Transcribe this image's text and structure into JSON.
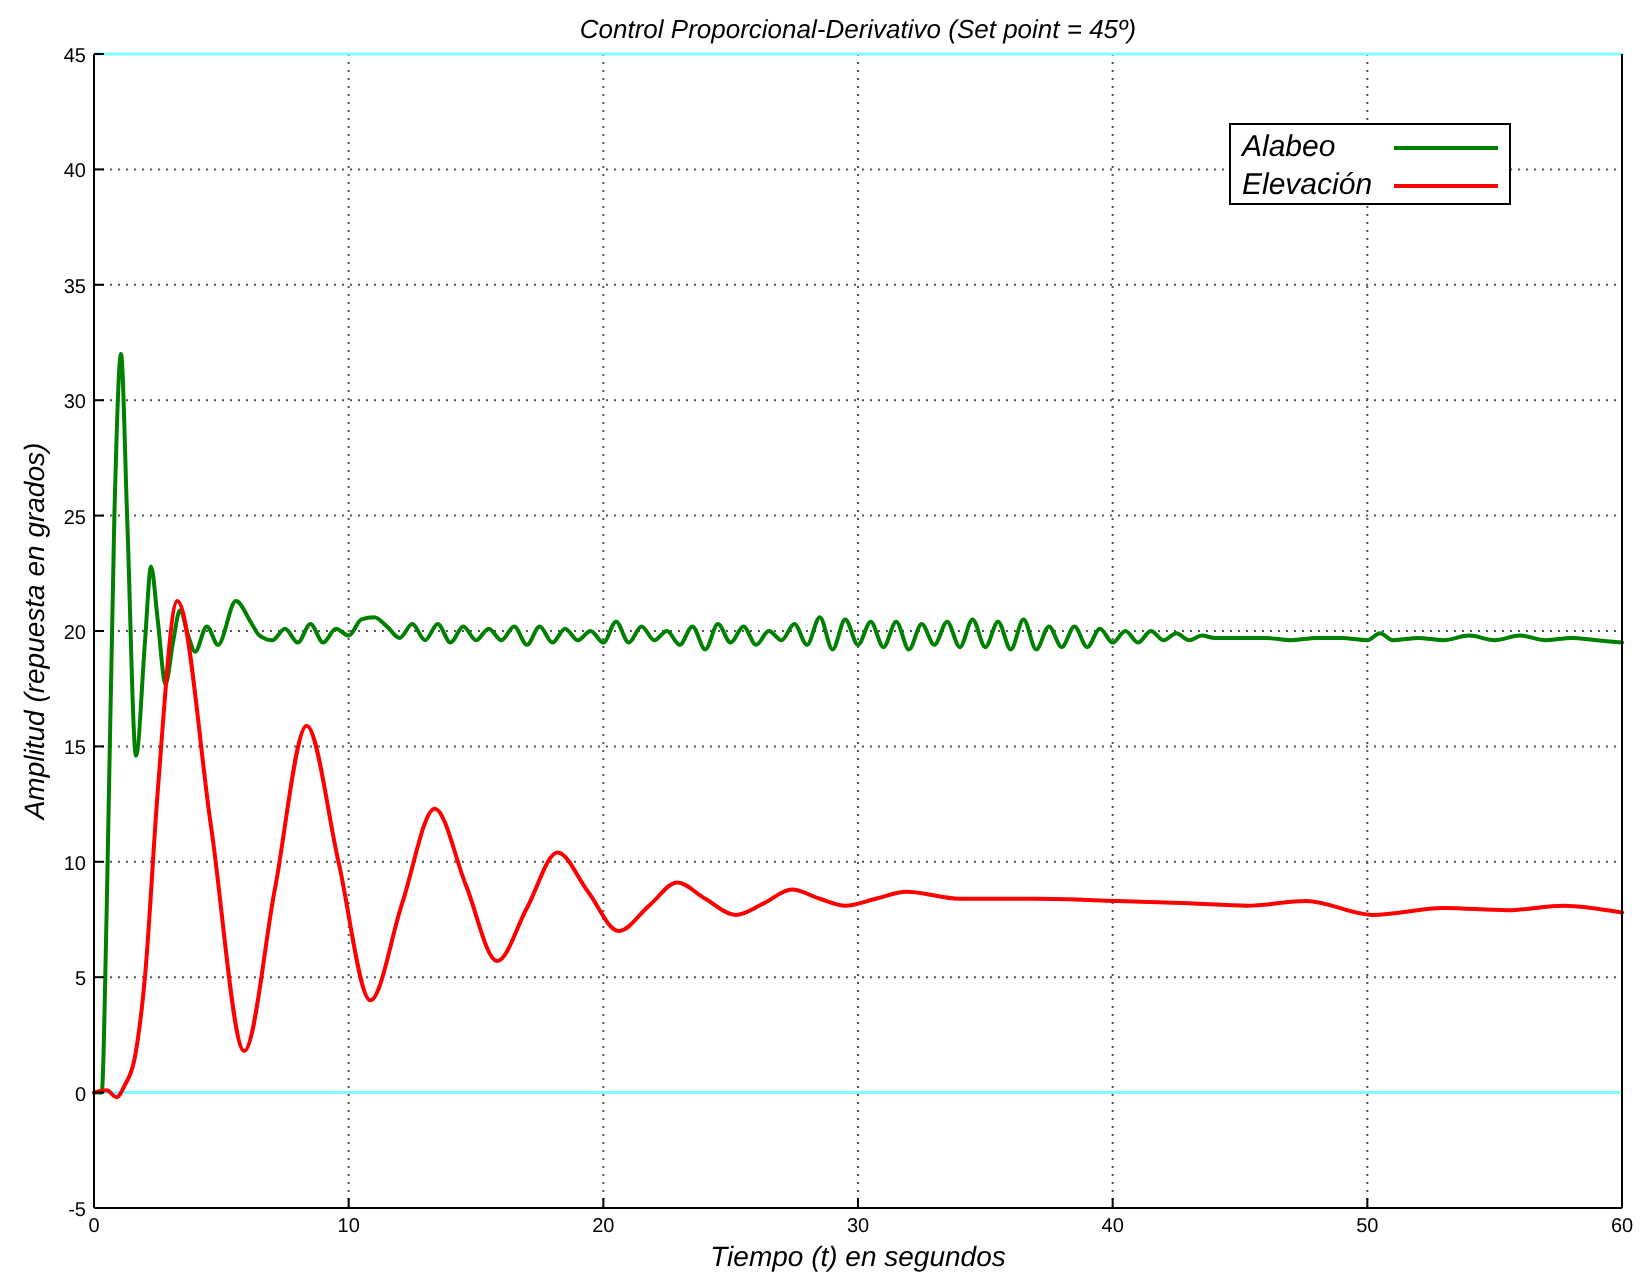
{
  "chart_data": {
    "type": "line",
    "title": "Control Proporcional-Derivativo (Set point = 45º)",
    "xlabel": "Tiempo (t) en segundos",
    "ylabel": "Amplitud (repuesta en grados)",
    "xlim": [
      0,
      60
    ],
    "xticks": [
      0,
      10,
      20,
      30,
      40,
      50,
      60
    ],
    "ylim": [
      -5,
      45
    ],
    "yticks": [
      -5,
      0,
      5,
      10,
      15,
      20,
      25,
      30,
      35,
      40,
      45
    ],
    "grid": true,
    "legend": "top right",
    "marker": "none",
    "line_style": "solid",
    "ref_lines": [
      {
        "axis": "y",
        "value": 45,
        "color": "#80ffff"
      },
      {
        "axis": "y",
        "value": 0,
        "color": "#80ffff"
      }
    ],
    "series": [
      {
        "name": "Alabeo",
        "color": "#008000",
        "x": [
          0,
          0.3,
          0.5,
          0.8,
          1.06,
          1.3,
          1.65,
          2.0,
          2.24,
          2.5,
          2.81,
          3.1,
          3.38,
          3.7,
          3.97,
          4.43,
          4.87,
          5.57,
          6.2,
          6.5,
          7,
          7.5,
          8,
          8.5,
          9,
          9.5,
          10,
          10.5,
          11,
          11.5,
          12,
          12.5,
          13,
          13.5,
          14,
          14.5,
          15,
          15.5,
          16,
          16.5,
          17,
          17.5,
          18,
          18.5,
          19,
          19.5,
          20,
          20.5,
          21,
          21.5,
          22,
          22.5,
          23,
          23.5,
          24,
          24.5,
          25,
          25.5,
          26,
          26.5,
          27,
          27.5,
          28,
          28.5,
          29,
          29.5,
          30,
          30.5,
          31,
          31.5,
          32,
          32.5,
          33,
          33.5,
          34,
          34.5,
          35,
          35.5,
          36,
          36.5,
          37,
          37.5,
          38,
          38.5,
          39,
          39.5,
          40,
          40.5,
          41,
          41.5,
          42,
          42.5,
          43,
          43.5,
          44,
          45,
          46,
          47,
          48,
          49,
          50,
          50.5,
          51,
          52,
          53,
          54,
          55,
          56,
          57,
          58,
          59,
          60
        ],
        "values": [
          0,
          0,
          8,
          25,
          32,
          25,
          14.6,
          19.5,
          22.8,
          20.5,
          17.7,
          19.5,
          20.9,
          19.8,
          19.1,
          20.2,
          19.4,
          21.3,
          20.3,
          19.8,
          19.6,
          20.1,
          19.5,
          20.3,
          19.5,
          20.1,
          19.8,
          20.5,
          20.6,
          20.2,
          19.7,
          20.3,
          19.6,
          20.3,
          19.5,
          20.2,
          19.6,
          20.1,
          19.6,
          20.2,
          19.4,
          20.2,
          19.5,
          20.1,
          19.6,
          20.0,
          19.5,
          20.4,
          19.5,
          20.2,
          19.6,
          20.0,
          19.4,
          20.2,
          19.2,
          20.3,
          19.5,
          20.2,
          19.4,
          20.0,
          19.6,
          20.3,
          19.4,
          20.6,
          19.2,
          20.5,
          19.4,
          20.4,
          19.3,
          20.4,
          19.2,
          20.3,
          19.4,
          20.4,
          19.3,
          20.5,
          19.3,
          20.4,
          19.2,
          20.5,
          19.2,
          20.2,
          19.3,
          20.2,
          19.3,
          20.1,
          19.5,
          20.0,
          19.5,
          20.0,
          19.6,
          19.9,
          19.6,
          19.8,
          19.7,
          19.7,
          19.7,
          19.6,
          19.7,
          19.7,
          19.6,
          19.9,
          19.6,
          19.7,
          19.6,
          19.8,
          19.6,
          19.8,
          19.6,
          19.7,
          19.6,
          19.5
        ]
      },
      {
        "name": "Elevación",
        "color": "#ff0000",
        "x": [
          0,
          0.5,
          0.88,
          1.2,
          1.6,
          2.0,
          2.5,
          3.27,
          4.6,
          5.9,
          7.1,
          8.35,
          9.6,
          10.85,
          12.1,
          13.38,
          14.6,
          15.83,
          17.0,
          18.2,
          19.4,
          20.6,
          21.8,
          22.9,
          24.0,
          25.2,
          26.3,
          27.4,
          28.5,
          29.5,
          30.7,
          31.9,
          34.0,
          37.0,
          40.2,
          43.0,
          45.3,
          47.6,
          50.2,
          53.0,
          55.5,
          57.7,
          60
        ],
        "values": [
          0,
          0.1,
          -0.2,
          0.3,
          1.5,
          5,
          13,
          21.3,
          11.5,
          1.8,
          8.8,
          15.9,
          10,
          4.0,
          8.2,
          12.3,
          9,
          5.7,
          8,
          10.4,
          8.7,
          7.0,
          8.1,
          9.1,
          8.4,
          7.7,
          8.2,
          8.8,
          8.4,
          8.1,
          8.4,
          8.7,
          8.4,
          8.4,
          8.3,
          8.2,
          8.1,
          8.3,
          7.7,
          8.0,
          7.9,
          8.1,
          7.8
        ]
      }
    ]
  }
}
